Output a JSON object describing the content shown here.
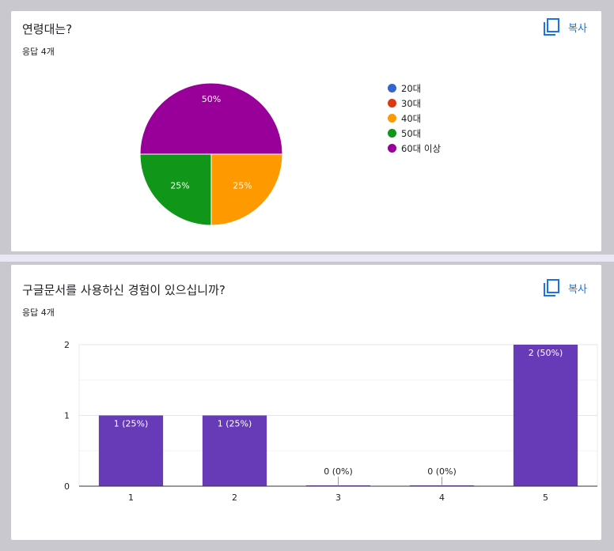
{
  "card1": {
    "title": "연령대는?",
    "responses": "응답 4개",
    "copy_label": "복사"
  },
  "card2": {
    "title": "구글문서를 사용하신 경험이 있으십니까?",
    "responses": "응답 4개",
    "copy_label": "복사"
  },
  "colors": {
    "purple": "#990099",
    "green": "#109618",
    "orange": "#ff9900",
    "red": "#dc3912",
    "blue": "#3366cc",
    "bar": "#673ab7"
  },
  "chart_data": [
    {
      "type": "pie",
      "labels": [
        "20대",
        "30대",
        "40대",
        "50대",
        "60대 이상"
      ],
      "values": [
        0,
        0,
        1,
        1,
        2
      ],
      "percent_labels": [
        "",
        "",
        "25%",
        "25%",
        "50%"
      ],
      "colors": [
        "#3366cc",
        "#dc3912",
        "#ff9900",
        "#109618",
        "#990099"
      ],
      "legend": "right"
    },
    {
      "type": "bar",
      "categories": [
        "1",
        "2",
        "3",
        "4",
        "5"
      ],
      "values": [
        1,
        1,
        0,
        0,
        2
      ],
      "data_labels": [
        "1 (25%)",
        "1 (25%)",
        "0 (0%)",
        "0 (0%)",
        "2 (50%)"
      ],
      "ylim": [
        0,
        2
      ],
      "yticks": [
        "0",
        "1",
        "2"
      ],
      "grid": true,
      "color": "#673ab7"
    }
  ]
}
